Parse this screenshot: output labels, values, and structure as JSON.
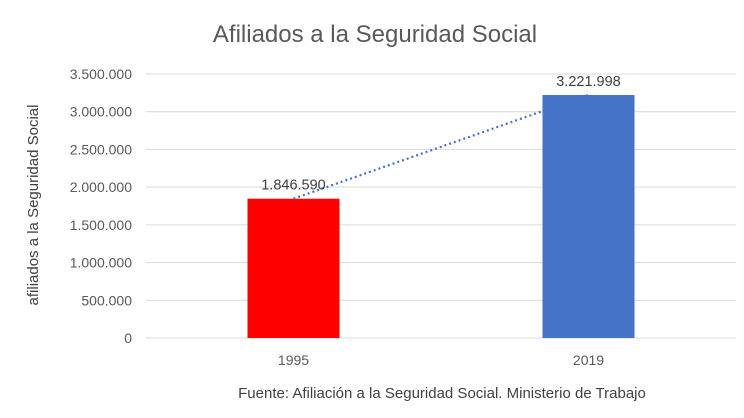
{
  "chart_data": {
    "type": "bar",
    "title": "Afiliados a la Seguridad Social",
    "xlabel": "",
    "ylabel": "afiliados a la Seguridad Social",
    "categories": [
      "1995",
      "2019"
    ],
    "values": [
      1846590,
      3221998
    ],
    "value_labels": [
      "1.846.590",
      "3.221.998"
    ],
    "bar_colors": [
      "#ff0000",
      "#4472c4"
    ],
    "ylim": [
      0,
      3500000
    ],
    "yticks": [
      0,
      500000,
      1000000,
      1500000,
      2000000,
      2500000,
      3000000,
      3500000
    ],
    "ytick_labels": [
      "0",
      "500.000",
      "1.000.000",
      "1.500.000",
      "2.000.000",
      "2.500.000",
      "3.000.000",
      "3.500.000"
    ],
    "grid": true,
    "trendline": {
      "type": "linear",
      "style": "dotted",
      "color": "#4472c4"
    },
    "source_note": "Fuente: Afiliación a la Seguridad Social. Ministerio de Trabajo"
  }
}
